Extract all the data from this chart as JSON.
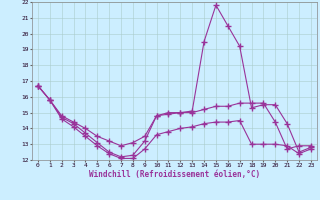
{
  "xlabel": "Windchill (Refroidissement éolien,°C)",
  "background_color": "#cceeff",
  "line_color": "#993399",
  "ylim": [
    12,
    22
  ],
  "xlim": [
    -0.5,
    23.5
  ],
  "yticks": [
    12,
    13,
    14,
    15,
    16,
    17,
    18,
    19,
    20,
    21,
    22
  ],
  "xticks": [
    0,
    1,
    2,
    3,
    4,
    5,
    6,
    7,
    8,
    9,
    10,
    11,
    12,
    13,
    14,
    15,
    16,
    17,
    18,
    19,
    20,
    21,
    22,
    23
  ],
  "s1": [
    16.7,
    15.8,
    14.8,
    14.4,
    14.0,
    13.5,
    13.2,
    12.9,
    13.1,
    13.5,
    14.8,
    14.9,
    15.0,
    15.0,
    15.2,
    15.4,
    15.4,
    15.6,
    15.6,
    15.6,
    14.4,
    12.7,
    12.9,
    12.9
  ],
  "s2": [
    16.7,
    15.8,
    14.7,
    14.3,
    13.7,
    13.1,
    12.5,
    12.2,
    12.3,
    13.2,
    14.8,
    15.0,
    15.0,
    15.1,
    19.5,
    21.8,
    20.5,
    19.2,
    15.3,
    15.5,
    15.5,
    14.3,
    12.5,
    12.8
  ],
  "s3": [
    16.7,
    15.8,
    14.6,
    14.1,
    13.5,
    12.9,
    12.4,
    12.1,
    12.1,
    12.7,
    13.6,
    13.8,
    14.0,
    14.1,
    14.3,
    14.4,
    14.4,
    14.5,
    13.0,
    13.0,
    13.0,
    12.9,
    12.4,
    12.7
  ],
  "marker": "+",
  "markersize": 4.0,
  "linewidth": 0.8
}
